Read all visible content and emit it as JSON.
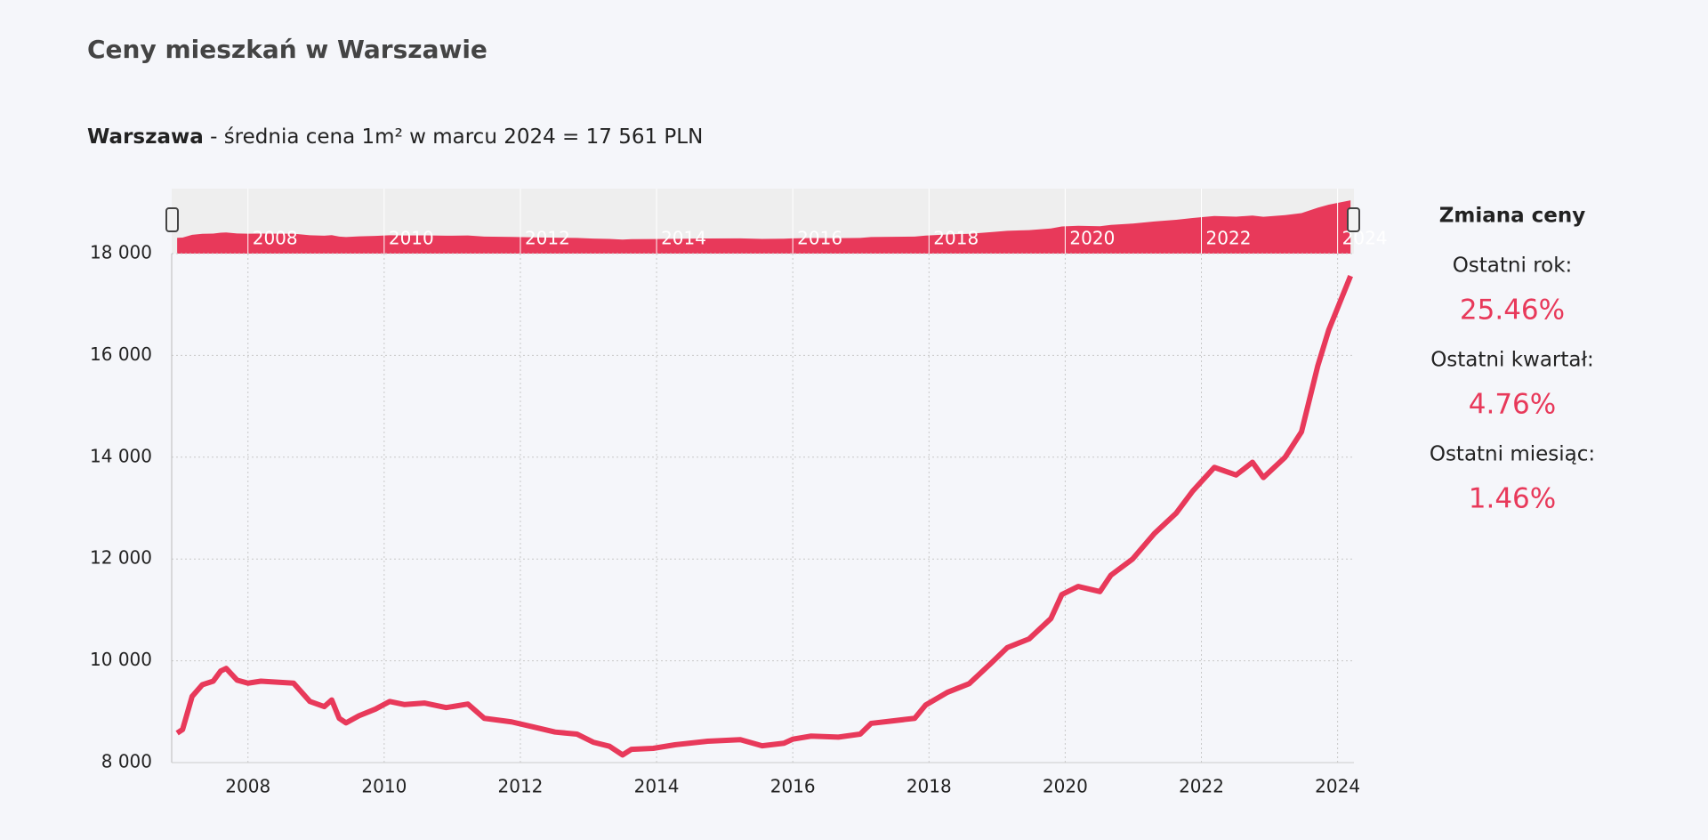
{
  "chart_data": {
    "type": "line",
    "title": "Ceny mieszkań w Warszawie",
    "subtitle_bold": "Warszawa",
    "subtitle": " - średnia cena 1m² w marcu 2024 = 17 561 PLN",
    "x": [
      2006.96,
      2007.04,
      2007.18,
      2007.33,
      2007.49,
      2007.6,
      2007.68,
      2007.84,
      2008.0,
      2008.19,
      2008.43,
      2008.67,
      2008.91,
      2009.12,
      2009.23,
      2009.34,
      2009.44,
      2009.63,
      2009.87,
      2010.08,
      2010.3,
      2010.59,
      2010.91,
      2011.23,
      2011.47,
      2011.87,
      2012.19,
      2012.51,
      2012.83,
      2013.07,
      2013.31,
      2013.5,
      2013.63,
      2013.95,
      2014.27,
      2014.75,
      2015.23,
      2015.55,
      2015.87,
      2016.0,
      2016.27,
      2016.67,
      2016.99,
      2017.15,
      2017.47,
      2017.79,
      2017.95,
      2018.27,
      2018.59,
      2018.91,
      2019.15,
      2019.47,
      2019.79,
      2019.95,
      2020.19,
      2020.51,
      2020.67,
      2020.99,
      2021.31,
      2021.63,
      2021.87,
      2022.19,
      2022.51,
      2022.75,
      2022.91,
      2023.23,
      2023.47,
      2023.71,
      2023.87,
      2024.19
    ],
    "series": [
      {
        "color": "#e8395a",
        "values": [
          8580,
          8650,
          9300,
          9530,
          9600,
          9800,
          9850,
          9620,
          9560,
          9600,
          9580,
          9560,
          9200,
          9100,
          9230,
          8870,
          8780,
          8920,
          9050,
          9200,
          9140,
          9170,
          9080,
          9150,
          8870,
          8800,
          8700,
          8600,
          8560,
          8400,
          8320,
          8150,
          8260,
          8280,
          8350,
          8420,
          8450,
          8330,
          8380,
          8460,
          8520,
          8500,
          8560,
          8770,
          8820,
          8870,
          9130,
          9380,
          9550,
          9950,
          10260,
          10430,
          10830,
          11300,
          11460,
          11360,
          11680,
          12000,
          12500,
          12900,
          13330,
          13800,
          13650,
          13900,
          13600,
          14000,
          14500,
          15800,
          16500,
          17561
        ]
      }
    ],
    "xlim": [
      2006.88,
      2024.24
    ],
    "xticks": [
      2008,
      2010,
      2012,
      2014,
      2016,
      2018,
      2020,
      2022,
      2024
    ],
    "ylim": [
      8000,
      18000
    ],
    "yticks": [
      {
        "value": 8000,
        "label": "8 000"
      },
      {
        "value": 10000,
        "label": "10 000"
      },
      {
        "value": 12000,
        "label": "12 000"
      },
      {
        "value": 14000,
        "label": "14 000"
      },
      {
        "value": 16000,
        "label": "16 000"
      },
      {
        "value": 18000,
        "label": "18 000"
      }
    ],
    "grid": true,
    "panel": {
      "title": "Zmiana ceny",
      "stats": [
        {
          "label": "Ostatni rok:",
          "value": "25.46%"
        },
        {
          "label": "Ostatni kwartał:",
          "value": "4.76%"
        },
        {
          "label": "Ostatni miesiąc:",
          "value": "1.46%"
        }
      ]
    }
  }
}
